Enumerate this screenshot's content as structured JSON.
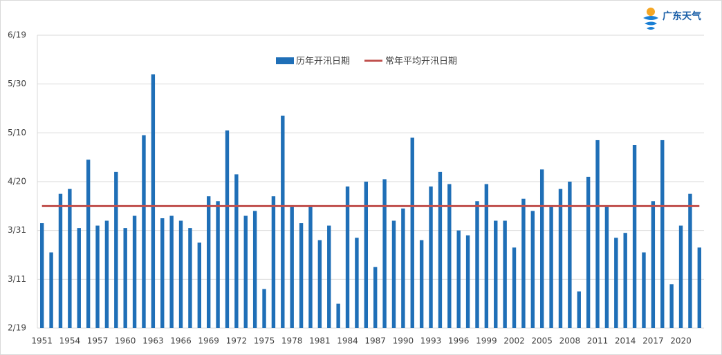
{
  "logo": {
    "text": "广东天气"
  },
  "chart_data": {
    "type": "bar",
    "categories": [
      "1951",
      null,
      null,
      "1954",
      null,
      null,
      "1957",
      null,
      null,
      "1960",
      null,
      null,
      "1963",
      null,
      null,
      "1966",
      null,
      null,
      "1969",
      null,
      null,
      "1972",
      null,
      null,
      "1975",
      null,
      null,
      "1978",
      null,
      null,
      "1981",
      null,
      null,
      "1984",
      null,
      null,
      "1987",
      null,
      null,
      "1990",
      null,
      null,
      "1993",
      null,
      null,
      "1996",
      null,
      null,
      "1999",
      null,
      null,
      "2002",
      null,
      null,
      "2005",
      null,
      null,
      "2008",
      null,
      null,
      "2011",
      null,
      null,
      "2014",
      null,
      null,
      "2017",
      null,
      null,
      "2020",
      null,
      null
    ],
    "series": [
      {
        "name": "历年开汛日期",
        "color": "#1f6fb7",
        "values": [
          93,
          81,
          105,
          107,
          91,
          119,
          92,
          94,
          114,
          91,
          96,
          129,
          154,
          95,
          96,
          94,
          91,
          85,
          104,
          102,
          131,
          113,
          96,
          98,
          66,
          104,
          137,
          100,
          93,
          100,
          86,
          92,
          60,
          108,
          87,
          110,
          75,
          111,
          94,
          99,
          128,
          86,
          108,
          114,
          109,
          90,
          88,
          102,
          109,
          94,
          94,
          83,
          103,
          98,
          115,
          100,
          107,
          110,
          65,
          112,
          127,
          100,
          87,
          89,
          125,
          81,
          102,
          127,
          68,
          92,
          105,
          83
        ]
      }
    ],
    "average": {
      "name": "常年平均开汛日期",
      "color": "#c0504d",
      "value": 100
    },
    "ylim": [
      50,
      170
    ],
    "yticks": [
      {
        "value": 50,
        "label": "2/19"
      },
      {
        "value": 70,
        "label": "3/11"
      },
      {
        "value": 90,
        "label": "3/31"
      },
      {
        "value": 110,
        "label": "4/20"
      },
      {
        "value": 130,
        "label": "5/10"
      },
      {
        "value": 150,
        "label": "5/30"
      },
      {
        "value": 170,
        "label": "6/19"
      }
    ],
    "grid": true
  }
}
